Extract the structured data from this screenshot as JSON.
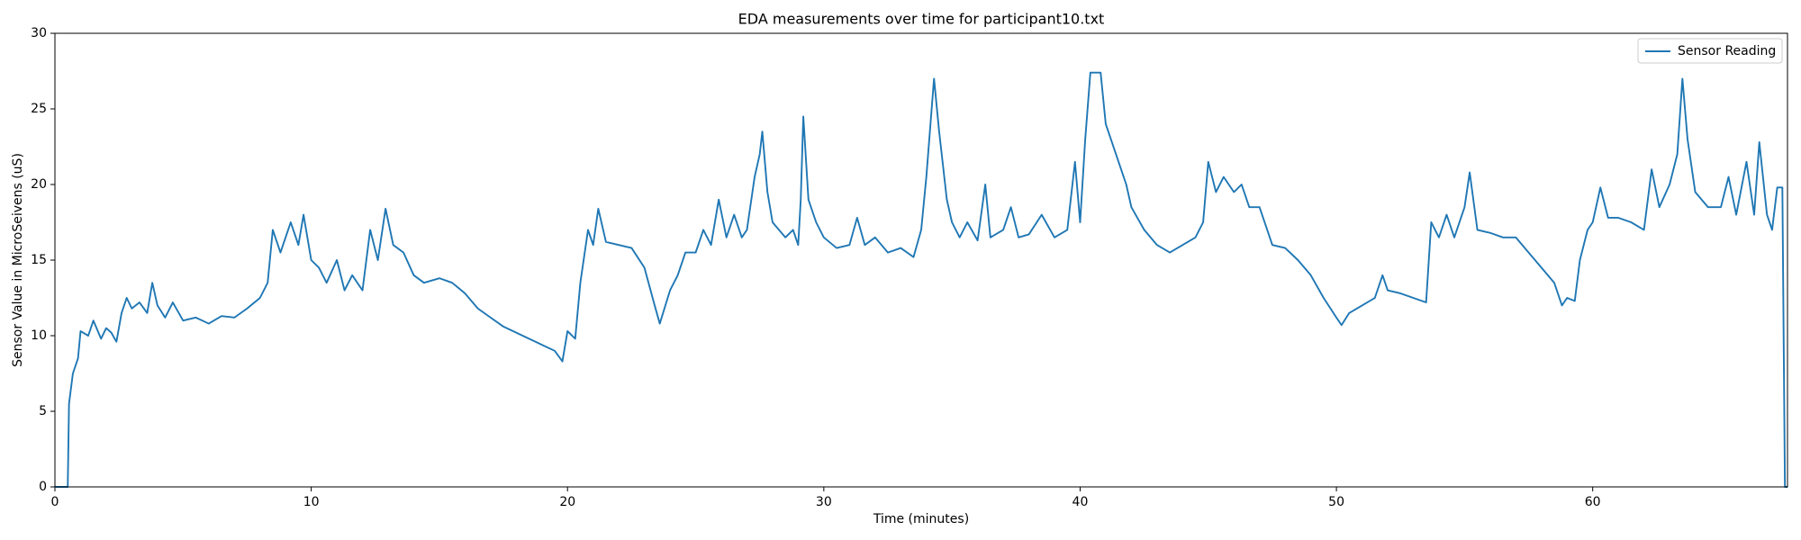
{
  "chart_data": {
    "type": "line",
    "title": "EDA measurements over time for participant10.txt",
    "x_label": "Time (minutes)",
    "y_label": "Sensor Value in MicroSeivens (uS)",
    "x": [
      0,
      0.5,
      0.55,
      0.7,
      0.9,
      1.0,
      1.3,
      1.5,
      1.8,
      2.0,
      2.2,
      2.4,
      2.6,
      2.8,
      3.0,
      3.3,
      3.6,
      3.8,
      4.0,
      4.3,
      4.6,
      5.0,
      5.5,
      6.0,
      6.5,
      7.0,
      7.5,
      8.0,
      8.3,
      8.5,
      8.8,
      9.0,
      9.2,
      9.5,
      9.7,
      10.0,
      10.3,
      10.6,
      11.0,
      11.3,
      11.6,
      12.0,
      12.3,
      12.6,
      12.9,
      13.2,
      13.6,
      14.0,
      14.4,
      15.0,
      15.5,
      16.0,
      16.5,
      17.0,
      17.5,
      18.0,
      18.5,
      19.0,
      19.5,
      19.8,
      20.0,
      20.3,
      20.5,
      20.8,
      21.0,
      21.2,
      21.5,
      22.0,
      22.5,
      23.0,
      23.4,
      23.6,
      24.0,
      24.3,
      24.6,
      25.0,
      25.3,
      25.6,
      25.9,
      26.2,
      26.5,
      26.8,
      27.0,
      27.3,
      27.5,
      27.6,
      27.8,
      28.0,
      28.5,
      28.8,
      29.0,
      29.1,
      29.2,
      29.4,
      29.7,
      30.0,
      30.5,
      31.0,
      31.3,
      31.6,
      32.0,
      32.5,
      33.0,
      33.5,
      33.8,
      34.0,
      34.3,
      34.5,
      34.8,
      35.0,
      35.3,
      35.6,
      36.0,
      36.3,
      36.5,
      37.0,
      37.3,
      37.6,
      38.0,
      38.5,
      39.0,
      39.5,
      39.8,
      40.0,
      40.2,
      40.4,
      40.8,
      41.0,
      41.2,
      41.5,
      41.8,
      42.0,
      42.5,
      43.0,
      43.5,
      44.0,
      44.5,
      44.8,
      45.0,
      45.3,
      45.6,
      46.0,
      46.3,
      46.6,
      47.0,
      47.5,
      48.0,
      48.5,
      49.0,
      49.5,
      50.0,
      50.2,
      50.5,
      51.0,
      51.5,
      51.8,
      52.0,
      52.5,
      53.0,
      53.5,
      53.7,
      54.0,
      54.3,
      54.6,
      55.0,
      55.2,
      55.5,
      56.0,
      56.5,
      57.0,
      57.5,
      58.0,
      58.5,
      58.8,
      59.0,
      59.3,
      59.5,
      59.8,
      60.0,
      60.3,
      60.6,
      61.0,
      61.5,
      62.0,
      62.3,
      62.6,
      63.0,
      63.3,
      63.5,
      63.7,
      64.0,
      64.5,
      65.0,
      65.3,
      65.6,
      66.0,
      66.3,
      66.5,
      66.8,
      67.0,
      67.2,
      67.4,
      67.5,
      67.6
    ],
    "series": [
      {
        "name": "Sensor Reading",
        "color": "#1f77b4",
        "values": [
          0,
          0,
          5.5,
          7.5,
          8.5,
          10.3,
          10.0,
          11.0,
          9.8,
          10.5,
          10.2,
          9.6,
          11.5,
          12.5,
          11.8,
          12.2,
          11.5,
          13.5,
          12.0,
          11.2,
          12.2,
          11.0,
          11.2,
          10.8,
          11.3,
          11.2,
          11.8,
          12.5,
          13.5,
          17.0,
          15.5,
          16.5,
          17.5,
          16.0,
          18.0,
          15.0,
          14.5,
          13.5,
          15.0,
          13.0,
          14.0,
          13.0,
          17.0,
          15.0,
          18.4,
          16.0,
          15.5,
          14.0,
          13.5,
          13.8,
          13.5,
          12.8,
          11.8,
          11.2,
          10.6,
          10.2,
          9.8,
          9.4,
          9.0,
          8.3,
          10.3,
          9.8,
          13.5,
          17.0,
          16.0,
          18.4,
          16.2,
          16.0,
          15.8,
          14.5,
          12.0,
          10.8,
          13.0,
          14.0,
          15.5,
          15.5,
          17.0,
          16.0,
          19.0,
          16.5,
          18.0,
          16.5,
          17.0,
          20.5,
          22.0,
          23.5,
          19.5,
          17.5,
          16.5,
          17.0,
          16.0,
          19.0,
          24.5,
          19.0,
          17.5,
          16.5,
          15.8,
          16.0,
          17.8,
          16.0,
          16.5,
          15.5,
          15.8,
          15.2,
          17.0,
          20.5,
          27.0,
          23.5,
          19.0,
          17.5,
          16.5,
          17.5,
          16.3,
          20.0,
          16.5,
          17.0,
          18.5,
          16.5,
          16.7,
          18.0,
          16.5,
          17.0,
          21.5,
          17.5,
          23.0,
          27.4,
          27.4,
          24.0,
          23.0,
          21.5,
          20.0,
          18.5,
          17.0,
          16.0,
          15.5,
          16.0,
          16.5,
          17.5,
          21.5,
          19.5,
          20.5,
          19.5,
          20.0,
          18.5,
          18.5,
          16.0,
          15.8,
          15.0,
          14.0,
          12.5,
          11.2,
          10.7,
          11.5,
          12.0,
          12.5,
          14.0,
          13.0,
          12.8,
          12.5,
          12.2,
          17.5,
          16.5,
          18.0,
          16.5,
          18.5,
          20.8,
          17.0,
          16.8,
          16.5,
          16.5,
          15.5,
          14.5,
          13.5,
          12.0,
          12.5,
          12.3,
          15.0,
          17.0,
          17.5,
          19.8,
          17.8,
          17.8,
          17.5,
          17.0,
          21.0,
          18.5,
          20.0,
          22.0,
          27.0,
          23.0,
          19.5,
          18.5,
          18.5,
          20.5,
          18.0,
          21.5,
          18.0,
          22.8,
          18.0,
          17.0,
          19.8,
          19.8,
          0,
          0
        ]
      }
    ],
    "xlim": [
      0,
      67.6
    ],
    "xticks": [
      0,
      10,
      20,
      30,
      40,
      50,
      60
    ],
    "ylim": [
      0,
      30
    ],
    "yticks": [
      0,
      5,
      10,
      15,
      20,
      25,
      30
    ],
    "grid": false,
    "legend": "upper right"
  }
}
